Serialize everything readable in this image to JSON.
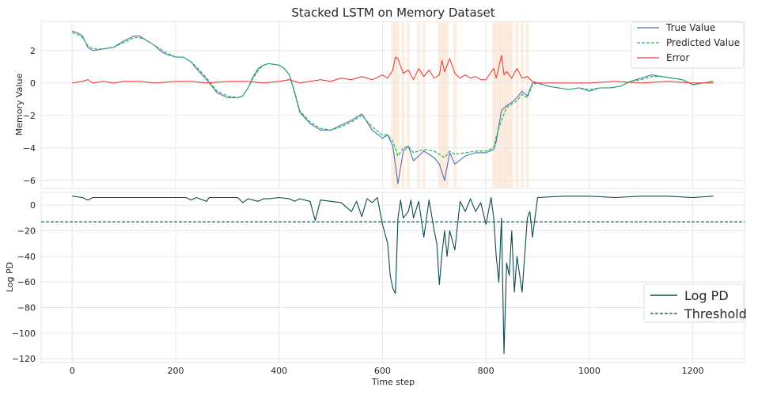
{
  "chart_data": [
    {
      "type": "line",
      "title": "Stacked LSTM on Memory Dataset",
      "xlabel": "",
      "ylabel": "Memory Value",
      "xlim": [
        -60,
        1300
      ],
      "ylim": [
        -6.5,
        3.8
      ],
      "x_ticks": [
        0,
        200,
        400,
        600,
        800,
        1000,
        1200
      ],
      "y_ticks": [
        2,
        0,
        -2,
        -4,
        -6
      ],
      "y_tick_labels": [
        "2",
        "0",
        "−2",
        "−4",
        "−6"
      ],
      "grid": true,
      "legend_position": "top-right",
      "series": [
        {
          "name": "True Value",
          "style": "solid",
          "color": "#4c72b0",
          "x": [
            0,
            10,
            20,
            30,
            40,
            60,
            80,
            100,
            120,
            130,
            140,
            160,
            170,
            180,
            200,
            215,
            230,
            240,
            260,
            280,
            300,
            320,
            330,
            340,
            350,
            360,
            370,
            380,
            400,
            410,
            420,
            430,
            440,
            460,
            480,
            500,
            520,
            540,
            560,
            580,
            600,
            610,
            620,
            630,
            640,
            650,
            660,
            680,
            700,
            710,
            720,
            730,
            740,
            760,
            780,
            800,
            815,
            820,
            830,
            840,
            850,
            860,
            870,
            880,
            890,
            900,
            920,
            940,
            960,
            980,
            1000,
            1020,
            1040,
            1060,
            1080,
            1100,
            1120,
            1140,
            1160,
            1180,
            1200,
            1220,
            1240
          ],
          "y": [
            3.2,
            3.1,
            2.9,
            2.2,
            2.0,
            2.1,
            2.2,
            2.6,
            2.9,
            2.9,
            2.7,
            2.3,
            2.0,
            1.8,
            1.6,
            1.6,
            1.3,
            0.9,
            0.2,
            -0.6,
            -0.9,
            -0.9,
            -0.8,
            -0.3,
            0.4,
            0.9,
            1.1,
            1.2,
            1.1,
            0.9,
            0.5,
            -0.6,
            -1.8,
            -2.5,
            -2.9,
            -2.9,
            -2.6,
            -2.3,
            -1.9,
            -2.9,
            -3.4,
            -3.2,
            -3.9,
            -6.2,
            -4.2,
            -3.9,
            -4.8,
            -4.2,
            -4.6,
            -5.0,
            -6.0,
            -4.3,
            -5.0,
            -4.5,
            -4.3,
            -4.3,
            -4.1,
            -3.6,
            -1.7,
            -1.4,
            -1.2,
            -0.9,
            -0.5,
            -0.8,
            0.0,
            0.0,
            -0.2,
            -0.3,
            -0.4,
            -0.3,
            -0.5,
            -0.3,
            -0.3,
            -0.2,
            0.1,
            0.3,
            0.5,
            0.4,
            0.3,
            0.2,
            -0.1,
            0.0,
            0.1
          ]
        },
        {
          "name": "Predicted Value",
          "style": "dashed",
          "color": "#1db954",
          "x": [
            0,
            10,
            20,
            30,
            40,
            60,
            80,
            100,
            120,
            130,
            140,
            160,
            170,
            180,
            200,
            215,
            230,
            240,
            260,
            280,
            300,
            320,
            330,
            340,
            350,
            360,
            370,
            380,
            400,
            410,
            420,
            430,
            440,
            460,
            480,
            500,
            520,
            540,
            560,
            580,
            600,
            610,
            620,
            630,
            640,
            650,
            660,
            680,
            700,
            710,
            720,
            730,
            740,
            760,
            780,
            800,
            815,
            820,
            830,
            840,
            850,
            860,
            870,
            880,
            890,
            900,
            920,
            940,
            960,
            980,
            1000,
            1020,
            1040,
            1060,
            1080,
            1100,
            1120,
            1140,
            1160,
            1180,
            1200,
            1220,
            1240
          ],
          "y": [
            3.1,
            3.0,
            2.8,
            2.3,
            2.1,
            2.1,
            2.2,
            2.5,
            2.8,
            2.8,
            2.7,
            2.3,
            2.1,
            1.9,
            1.6,
            1.6,
            1.3,
            1.0,
            0.3,
            -0.5,
            -0.8,
            -0.9,
            -0.8,
            -0.3,
            0.3,
            0.8,
            1.1,
            1.2,
            1.1,
            0.9,
            0.5,
            -0.5,
            -1.7,
            -2.4,
            -2.8,
            -2.9,
            -2.7,
            -2.4,
            -2.0,
            -2.7,
            -3.2,
            -3.2,
            -3.6,
            -4.5,
            -4.0,
            -3.9,
            -4.3,
            -4.1,
            -4.2,
            -4.4,
            -4.6,
            -4.2,
            -4.4,
            -4.3,
            -4.2,
            -4.2,
            -4.0,
            -3.3,
            -2.3,
            -1.5,
            -1.3,
            -1.1,
            -0.7,
            -0.9,
            -0.1,
            0.0,
            -0.2,
            -0.3,
            -0.4,
            -0.3,
            -0.4,
            -0.3,
            -0.3,
            -0.2,
            0.1,
            0.2,
            0.4,
            0.4,
            0.3,
            0.2,
            -0.1,
            0.0,
            0.1
          ]
        },
        {
          "name": "Error",
          "style": "solid",
          "color": "#e8403a",
          "x": [
            0,
            20,
            30,
            40,
            60,
            80,
            100,
            130,
            160,
            200,
            230,
            260,
            300,
            340,
            370,
            400,
            420,
            440,
            460,
            480,
            500,
            520,
            540,
            560,
            580,
            600,
            610,
            620,
            625,
            630,
            640,
            650,
            660,
            670,
            680,
            690,
            700,
            710,
            715,
            720,
            730,
            740,
            750,
            760,
            770,
            780,
            790,
            800,
            815,
            820,
            830,
            835,
            840,
            850,
            860,
            870,
            880,
            890,
            900,
            950,
            1000,
            1050,
            1100,
            1150,
            1200,
            1240
          ],
          "y": [
            0.0,
            0.1,
            0.2,
            0.0,
            0.1,
            0.0,
            0.1,
            0.1,
            0.0,
            0.1,
            0.1,
            0.0,
            0.1,
            0.1,
            0.0,
            0.1,
            0.2,
            0.0,
            0.1,
            0.2,
            0.1,
            0.3,
            0.2,
            0.4,
            0.2,
            0.5,
            0.3,
            0.8,
            1.6,
            1.5,
            0.6,
            0.8,
            0.2,
            0.9,
            0.4,
            0.8,
            0.3,
            0.5,
            1.4,
            0.7,
            1.5,
            0.6,
            0.3,
            0.5,
            0.3,
            0.4,
            0.2,
            0.2,
            0.9,
            0.3,
            1.7,
            0.5,
            0.7,
            0.3,
            0.9,
            0.3,
            0.4,
            0.1,
            0.0,
            0.0,
            0.0,
            0.1,
            0.0,
            0.1,
            0.0,
            0.0
          ]
        }
      ]
    },
    {
      "type": "line",
      "title": "",
      "xlabel": "Time step",
      "ylabel": "Log PD",
      "xlim": [
        -60,
        1300
      ],
      "ylim": [
        -123,
        10
      ],
      "x_ticks": [
        0,
        200,
        400,
        600,
        800,
        1000,
        1200
      ],
      "y_ticks": [
        0,
        -20,
        -40,
        -60,
        -80,
        -100,
        -120
      ],
      "y_tick_labels": [
        "0",
        "−20",
        "−40",
        "−60",
        "−80",
        "−100",
        "−120"
      ],
      "grid": true,
      "legend_position": "center-right",
      "series": [
        {
          "name": "Log PD",
          "style": "solid",
          "color": "#0c4a4a",
          "x": [
            0,
            20,
            30,
            40,
            60,
            80,
            100,
            140,
            180,
            220,
            230,
            240,
            260,
            265,
            280,
            320,
            330,
            340,
            360,
            370,
            380,
            400,
            420,
            430,
            440,
            460,
            470,
            480,
            520,
            540,
            550,
            560,
            570,
            580,
            590,
            600,
            610,
            615,
            620,
            625,
            630,
            635,
            640,
            650,
            655,
            660,
            670,
            680,
            690,
            700,
            705,
            710,
            715,
            720,
            725,
            730,
            740,
            750,
            760,
            770,
            780,
            790,
            800,
            810,
            815,
            820,
            825,
            830,
            835,
            840,
            845,
            850,
            855,
            860,
            870,
            880,
            885,
            890,
            900,
            950,
            1000,
            1050,
            1100,
            1150,
            1200,
            1240
          ],
          "y": [
            7,
            6,
            4,
            6,
            6,
            6,
            6,
            6,
            6,
            6,
            4,
            6,
            3,
            6,
            6,
            6,
            2,
            5,
            3,
            5,
            5,
            6,
            5,
            3,
            5,
            3,
            -12,
            4,
            2,
            -5,
            3,
            -9,
            5,
            2,
            6,
            -15,
            -30,
            -55,
            -65,
            -69,
            -10,
            4,
            -10,
            -5,
            4,
            -10,
            3,
            -25,
            4,
            -20,
            -30,
            -62,
            -38,
            -20,
            -40,
            -20,
            -35,
            3,
            -5,
            5,
            -5,
            2,
            -15,
            6,
            -10,
            -40,
            -60,
            -10,
            -116,
            -45,
            -55,
            -20,
            -68,
            -40,
            -68,
            -10,
            -5,
            -25,
            6,
            7,
            7,
            6,
            7,
            7,
            6,
            7
          ]
        },
        {
          "name": "Threshold",
          "style": "dashed",
          "color": "#0c4a4a",
          "x": [
            -60,
            1300
          ],
          "y": [
            -13,
            -13
          ]
        }
      ],
      "anomaly_spans_x": [
        620,
        625,
        630,
        640,
        650,
        670,
        680,
        710,
        715,
        720,
        725,
        740,
        815,
        820,
        825,
        830,
        835,
        840,
        845,
        850,
        860,
        870,
        880
      ]
    }
  ]
}
